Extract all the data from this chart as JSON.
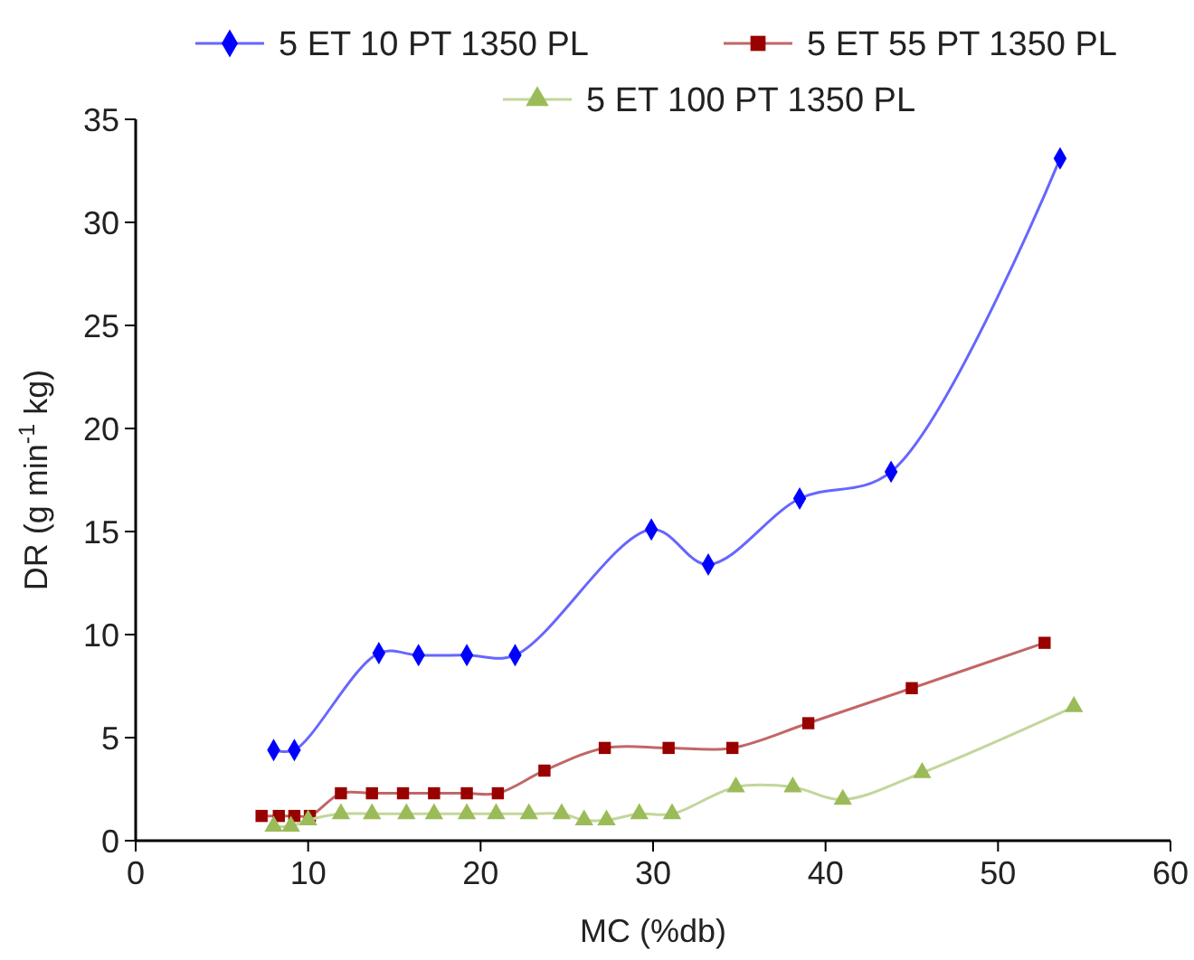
{
  "chart_data": {
    "type": "line",
    "xlabel": "MC (%db)",
    "ylabel": "DR (g min$^{-1}$ kg)",
    "xlim": [
      0,
      60
    ],
    "ylim": [
      0,
      35
    ],
    "xticks": [
      0,
      10,
      20,
      30,
      40,
      50,
      60
    ],
    "yticks": [
      0,
      5,
      10,
      15,
      20,
      25,
      30,
      35
    ],
    "grid": false,
    "legend": "top",
    "line_style": "solid",
    "series": [
      {
        "name": "5 ET 10 PT 1350 PL",
        "color": "#0000ff",
        "marker": "diamond",
        "x": [
          8.0,
          9.2,
          14.1,
          16.4,
          19.2,
          22.0,
          29.9,
          33.2,
          38.5,
          43.8,
          53.6
        ],
        "values": [
          4.4,
          4.4,
          9.1,
          9.0,
          9.0,
          9.0,
          15.1,
          13.4,
          16.6,
          17.9,
          33.1
        ]
      },
      {
        "name": "5 ET 55 PT 1350 PL",
        "color": "#990000",
        "marker": "square",
        "x": [
          7.3,
          8.3,
          9.2,
          10.1,
          11.9,
          13.7,
          15.5,
          17.3,
          19.2,
          21.0,
          23.7,
          27.2,
          30.9,
          34.6,
          39.0,
          45.0,
          52.7
        ],
        "values": [
          1.2,
          1.2,
          1.2,
          1.2,
          2.3,
          2.3,
          2.3,
          2.3,
          2.3,
          2.3,
          3.4,
          4.5,
          4.5,
          4.5,
          5.7,
          7.4,
          9.6
        ]
      },
      {
        "name": "5 ET 100 PT 1350 PL",
        "color": "#9bbb59",
        "marker": "triangle",
        "x": [
          8.0,
          9.0,
          10.0,
          11.9,
          13.7,
          15.7,
          17.3,
          19.2,
          20.9,
          22.8,
          24.7,
          26.0,
          27.3,
          29.2,
          31.1,
          34.8,
          38.1,
          41.0,
          45.6,
          54.4
        ],
        "values": [
          0.7,
          0.7,
          1.0,
          1.3,
          1.3,
          1.3,
          1.3,
          1.3,
          1.3,
          1.3,
          1.3,
          1.0,
          1.0,
          1.3,
          1.3,
          2.6,
          2.6,
          2.0,
          3.3,
          6.5
        ]
      }
    ]
  }
}
